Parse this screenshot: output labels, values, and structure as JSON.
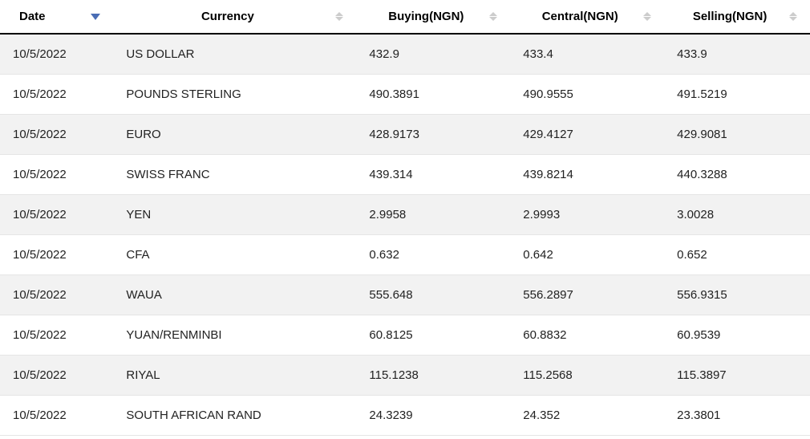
{
  "table": {
    "columns": [
      {
        "key": "date",
        "label": "Date",
        "sortable": true,
        "sort_active": "desc"
      },
      {
        "key": "currency",
        "label": "Currency",
        "sortable": true,
        "sort_active": null
      },
      {
        "key": "buying",
        "label": "Buying(NGN)",
        "sortable": true,
        "sort_active": null
      },
      {
        "key": "central",
        "label": "Central(NGN)",
        "sortable": true,
        "sort_active": null
      },
      {
        "key": "selling",
        "label": "Selling(NGN)",
        "sortable": true,
        "sort_active": null
      }
    ],
    "rows": [
      {
        "date": "10/5/2022",
        "currency": "US DOLLAR",
        "buying": "432.9",
        "central": "433.4",
        "selling": "433.9"
      },
      {
        "date": "10/5/2022",
        "currency": "POUNDS STERLING",
        "buying": "490.3891",
        "central": "490.9555",
        "selling": "491.5219"
      },
      {
        "date": "10/5/2022",
        "currency": "EURO",
        "buying": "428.9173",
        "central": "429.4127",
        "selling": "429.9081"
      },
      {
        "date": "10/5/2022",
        "currency": "SWISS FRANC",
        "buying": "439.314",
        "central": "439.8214",
        "selling": "440.3288"
      },
      {
        "date": "10/5/2022",
        "currency": "YEN",
        "buying": "2.9958",
        "central": "2.9993",
        "selling": "3.0028"
      },
      {
        "date": "10/5/2022",
        "currency": "CFA",
        "buying": "0.632",
        "central": "0.642",
        "selling": "0.652"
      },
      {
        "date": "10/5/2022",
        "currency": "WAUA",
        "buying": "555.648",
        "central": "556.2897",
        "selling": "556.9315"
      },
      {
        "date": "10/5/2022",
        "currency": "YUAN/RENMINBI",
        "buying": "60.8125",
        "central": "60.8832",
        "selling": "60.9539"
      },
      {
        "date": "10/5/2022",
        "currency": "RIYAL",
        "buying": "115.1238",
        "central": "115.2568",
        "selling": "115.3897"
      },
      {
        "date": "10/5/2022",
        "currency": "SOUTH AFRICAN RAND",
        "buying": "24.3239",
        "central": "24.352",
        "selling": "23.3801"
      }
    ],
    "styling": {
      "header_border_bottom": "#000000",
      "row_border_color": "#e5e5e5",
      "odd_row_bg": "#f2f2f2",
      "even_row_bg": "#ffffff",
      "text_color": "#222222",
      "sort_inactive_color": "#cccccc",
      "sort_active_color": "#4a6db5",
      "font_size_body": 15,
      "font_family": "Arial"
    }
  }
}
